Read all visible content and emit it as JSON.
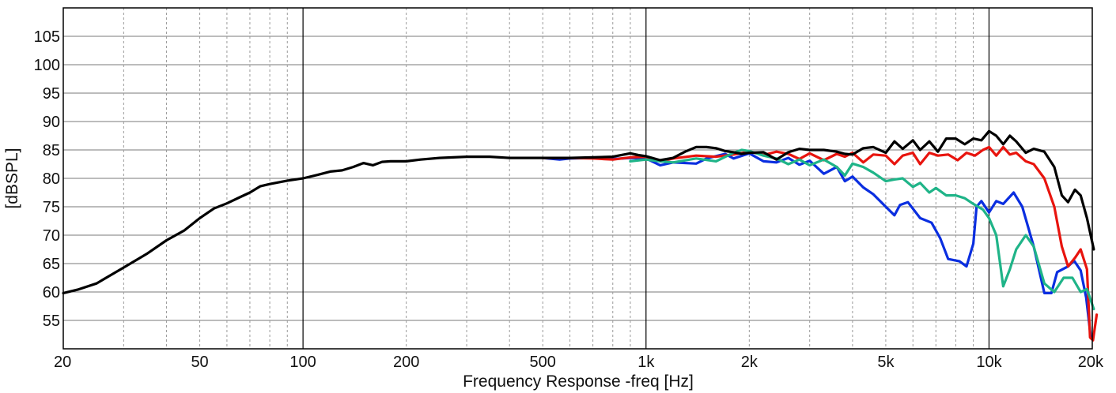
{
  "chart_data": {
    "type": "line",
    "title": "",
    "xlabel": "Frequency Response -freq [Hz]",
    "ylabel": "[dBSPL]",
    "xscale": "log",
    "xlim": [
      20,
      20000
    ],
    "ylim": [
      50,
      110
    ],
    "grid": true,
    "legend": "none",
    "x_ticks": [
      {
        "v": 20,
        "label": "20"
      },
      {
        "v": 50,
        "label": "50"
      },
      {
        "v": 100,
        "label": "100"
      },
      {
        "v": 200,
        "label": "200"
      },
      {
        "v": 500,
        "label": "500"
      },
      {
        "v": 1000,
        "label": "1k"
      },
      {
        "v": 2000,
        "label": "2k"
      },
      {
        "v": 5000,
        "label": "5k"
      },
      {
        "v": 10000,
        "label": "10k"
      },
      {
        "v": 20000,
        "label": "20k"
      }
    ],
    "y_ticks": [
      {
        "v": 55,
        "label": "55"
      },
      {
        "v": 60,
        "label": "60"
      },
      {
        "v": 65,
        "label": "65"
      },
      {
        "v": 70,
        "label": "70"
      },
      {
        "v": 75,
        "label": "75"
      },
      {
        "v": 80,
        "label": "80"
      },
      {
        "v": 85,
        "label": "85"
      },
      {
        "v": 90,
        "label": "90"
      },
      {
        "v": 95,
        "label": "95"
      },
      {
        "v": 100,
        "label": "100"
      },
      {
        "v": 105,
        "label": "105"
      }
    ],
    "series": [
      {
        "color": "#0a2ee0",
        "points": [
          [
            500,
            83.6
          ],
          [
            560,
            83.3
          ],
          [
            600,
            83.5
          ],
          [
            700,
            83.6
          ],
          [
            800,
            83.4
          ],
          [
            900,
            83.6
          ],
          [
            1000,
            83.5
          ],
          [
            1100,
            82.3
          ],
          [
            1200,
            82.8
          ],
          [
            1400,
            82.6
          ],
          [
            1500,
            83.5
          ],
          [
            1700,
            84.3
          ],
          [
            1800,
            83.5
          ],
          [
            2000,
            84.4
          ],
          [
            2200,
            83.0
          ],
          [
            2400,
            82.8
          ],
          [
            2600,
            83.6
          ],
          [
            2800,
            82.4
          ],
          [
            3000,
            83.1
          ],
          [
            3300,
            80.8
          ],
          [
            3600,
            82.0
          ],
          [
            3800,
            79.5
          ],
          [
            4000,
            80.3
          ],
          [
            4300,
            78.4
          ],
          [
            4600,
            77.2
          ],
          [
            5000,
            75.0
          ],
          [
            5300,
            73.5
          ],
          [
            5500,
            75.3
          ],
          [
            5800,
            75.8
          ],
          [
            6300,
            73.0
          ],
          [
            6800,
            72.2
          ],
          [
            7200,
            69.5
          ],
          [
            7600,
            65.8
          ],
          [
            8200,
            65.4
          ],
          [
            8600,
            64.5
          ],
          [
            9000,
            68.5
          ],
          [
            9200,
            75.0
          ],
          [
            9500,
            76.0
          ],
          [
            10000,
            74.0
          ],
          [
            10500,
            76.0
          ],
          [
            11000,
            75.5
          ],
          [
            11800,
            77.5
          ],
          [
            12500,
            75.0
          ],
          [
            13500,
            68.0
          ],
          [
            14500,
            59.8
          ],
          [
            15200,
            59.8
          ],
          [
            15800,
            63.5
          ],
          [
            17000,
            64.5
          ],
          [
            17700,
            65.5
          ],
          [
            18500,
            63.8
          ],
          [
            19200,
            59.0
          ],
          [
            19800,
            52.0
          ]
        ]
      },
      {
        "color": "#e8140e",
        "points": [
          [
            500,
            83.6
          ],
          [
            600,
            83.6
          ],
          [
            700,
            83.5
          ],
          [
            800,
            83.3
          ],
          [
            900,
            83.7
          ],
          [
            1000,
            83.8
          ],
          [
            1100,
            83.0
          ],
          [
            1200,
            83.5
          ],
          [
            1400,
            84.0
          ],
          [
            1600,
            83.8
          ],
          [
            1800,
            84.2
          ],
          [
            2000,
            84.7
          ],
          [
            2200,
            84.1
          ],
          [
            2400,
            84.7
          ],
          [
            2600,
            84.3
          ],
          [
            2800,
            83.4
          ],
          [
            3000,
            84.4
          ],
          [
            3300,
            83.2
          ],
          [
            3600,
            84.3
          ],
          [
            3800,
            83.8
          ],
          [
            4000,
            84.5
          ],
          [
            4300,
            82.8
          ],
          [
            4600,
            84.2
          ],
          [
            5000,
            84.0
          ],
          [
            5300,
            82.5
          ],
          [
            5600,
            84.0
          ],
          [
            6000,
            84.5
          ],
          [
            6300,
            82.5
          ],
          [
            6700,
            84.5
          ],
          [
            7100,
            84.0
          ],
          [
            7600,
            84.2
          ],
          [
            8100,
            83.2
          ],
          [
            8600,
            84.5
          ],
          [
            9100,
            84.0
          ],
          [
            9600,
            85.0
          ],
          [
            10000,
            85.5
          ],
          [
            10500,
            84.0
          ],
          [
            11000,
            85.5
          ],
          [
            11500,
            84.2
          ],
          [
            12000,
            84.5
          ],
          [
            12800,
            83.0
          ],
          [
            13500,
            82.5
          ],
          [
            14500,
            80.0
          ],
          [
            15500,
            75.0
          ],
          [
            16300,
            68.0
          ],
          [
            17000,
            64.5
          ],
          [
            17800,
            66.0
          ],
          [
            18500,
            67.5
          ],
          [
            19300,
            64.0
          ],
          [
            19700,
            52.0
          ],
          [
            20100,
            51.5
          ],
          [
            20600,
            56.0
          ]
        ]
      },
      {
        "color": "#1fb488",
        "points": [
          [
            900,
            83.0
          ],
          [
            1000,
            83.3
          ],
          [
            1100,
            83.0
          ],
          [
            1200,
            82.8
          ],
          [
            1400,
            83.5
          ],
          [
            1600,
            83.0
          ],
          [
            1800,
            84.5
          ],
          [
            1900,
            85.0
          ],
          [
            2000,
            84.8
          ],
          [
            2200,
            84.0
          ],
          [
            2400,
            83.5
          ],
          [
            2600,
            82.5
          ],
          [
            2800,
            83.3
          ],
          [
            3000,
            82.3
          ],
          [
            3300,
            83.3
          ],
          [
            3600,
            82.0
          ],
          [
            3800,
            80.5
          ],
          [
            4000,
            82.6
          ],
          [
            4300,
            82.0
          ],
          [
            4600,
            81.0
          ],
          [
            5000,
            79.5
          ],
          [
            5300,
            79.8
          ],
          [
            5600,
            80.0
          ],
          [
            6000,
            78.5
          ],
          [
            6300,
            79.2
          ],
          [
            6700,
            77.5
          ],
          [
            7000,
            78.3
          ],
          [
            7500,
            77.0
          ],
          [
            8000,
            77.0
          ],
          [
            8500,
            76.5
          ],
          [
            9000,
            75.5
          ],
          [
            9600,
            74.5
          ],
          [
            10000,
            73.0
          ],
          [
            10500,
            70.0
          ],
          [
            11000,
            61.0
          ],
          [
            11500,
            64.0
          ],
          [
            12000,
            67.5
          ],
          [
            12800,
            70.0
          ],
          [
            13500,
            68.0
          ],
          [
            14500,
            61.5
          ],
          [
            15500,
            60.0
          ],
          [
            16500,
            62.5
          ],
          [
            17500,
            62.5
          ],
          [
            18500,
            60.0
          ],
          [
            19300,
            60.5
          ],
          [
            20200,
            57.0
          ]
        ]
      },
      {
        "color": "#000000",
        "points": [
          [
            20,
            59.8
          ],
          [
            22,
            60.4
          ],
          [
            25,
            61.5
          ],
          [
            30,
            64.3
          ],
          [
            35,
            66.7
          ],
          [
            40,
            69.1
          ],
          [
            45,
            70.8
          ],
          [
            50,
            73.0
          ],
          [
            55,
            74.7
          ],
          [
            60,
            75.6
          ],
          [
            65,
            76.6
          ],
          [
            70,
            77.5
          ],
          [
            75,
            78.6
          ],
          [
            80,
            79.0
          ],
          [
            90,
            79.6
          ],
          [
            100,
            80.0
          ],
          [
            110,
            80.6
          ],
          [
            120,
            81.2
          ],
          [
            130,
            81.4
          ],
          [
            140,
            82.0
          ],
          [
            150,
            82.7
          ],
          [
            160,
            82.3
          ],
          [
            170,
            82.9
          ],
          [
            180,
            83.0
          ],
          [
            200,
            83.0
          ],
          [
            220,
            83.3
          ],
          [
            250,
            83.6
          ],
          [
            300,
            83.8
          ],
          [
            350,
            83.8
          ],
          [
            400,
            83.6
          ],
          [
            500,
            83.6
          ],
          [
            600,
            83.6
          ],
          [
            700,
            83.7
          ],
          [
            800,
            83.8
          ],
          [
            900,
            84.4
          ],
          [
            950,
            84.1
          ],
          [
            1000,
            83.9
          ],
          [
            1100,
            83.2
          ],
          [
            1200,
            83.6
          ],
          [
            1300,
            84.7
          ],
          [
            1400,
            85.5
          ],
          [
            1500,
            85.5
          ],
          [
            1600,
            85.3
          ],
          [
            1700,
            84.8
          ],
          [
            1800,
            84.6
          ],
          [
            1900,
            84.3
          ],
          [
            2000,
            84.5
          ],
          [
            2200,
            84.6
          ],
          [
            2400,
            83.3
          ],
          [
            2600,
            84.6
          ],
          [
            2800,
            85.2
          ],
          [
            3000,
            85.0
          ],
          [
            3300,
            85.0
          ],
          [
            3600,
            84.7
          ],
          [
            3800,
            84.3
          ],
          [
            4000,
            84.2
          ],
          [
            4300,
            85.3
          ],
          [
            4600,
            85.5
          ],
          [
            5000,
            84.5
          ],
          [
            5300,
            86.5
          ],
          [
            5600,
            85.2
          ],
          [
            6000,
            86.7
          ],
          [
            6300,
            85.0
          ],
          [
            6700,
            86.5
          ],
          [
            7100,
            84.7
          ],
          [
            7500,
            87.0
          ],
          [
            8000,
            87.0
          ],
          [
            8500,
            86.0
          ],
          [
            9000,
            87.0
          ],
          [
            9500,
            86.7
          ],
          [
            10000,
            88.3
          ],
          [
            10500,
            87.5
          ],
          [
            11000,
            86.0
          ],
          [
            11500,
            87.5
          ],
          [
            12000,
            86.5
          ],
          [
            12800,
            84.5
          ],
          [
            13500,
            85.2
          ],
          [
            14500,
            84.7
          ],
          [
            15500,
            82.0
          ],
          [
            16300,
            77.0
          ],
          [
            17000,
            75.8
          ],
          [
            17800,
            78.0
          ],
          [
            18500,
            77.0
          ],
          [
            19300,
            73.0
          ],
          [
            20200,
            67.5
          ]
        ]
      }
    ]
  }
}
